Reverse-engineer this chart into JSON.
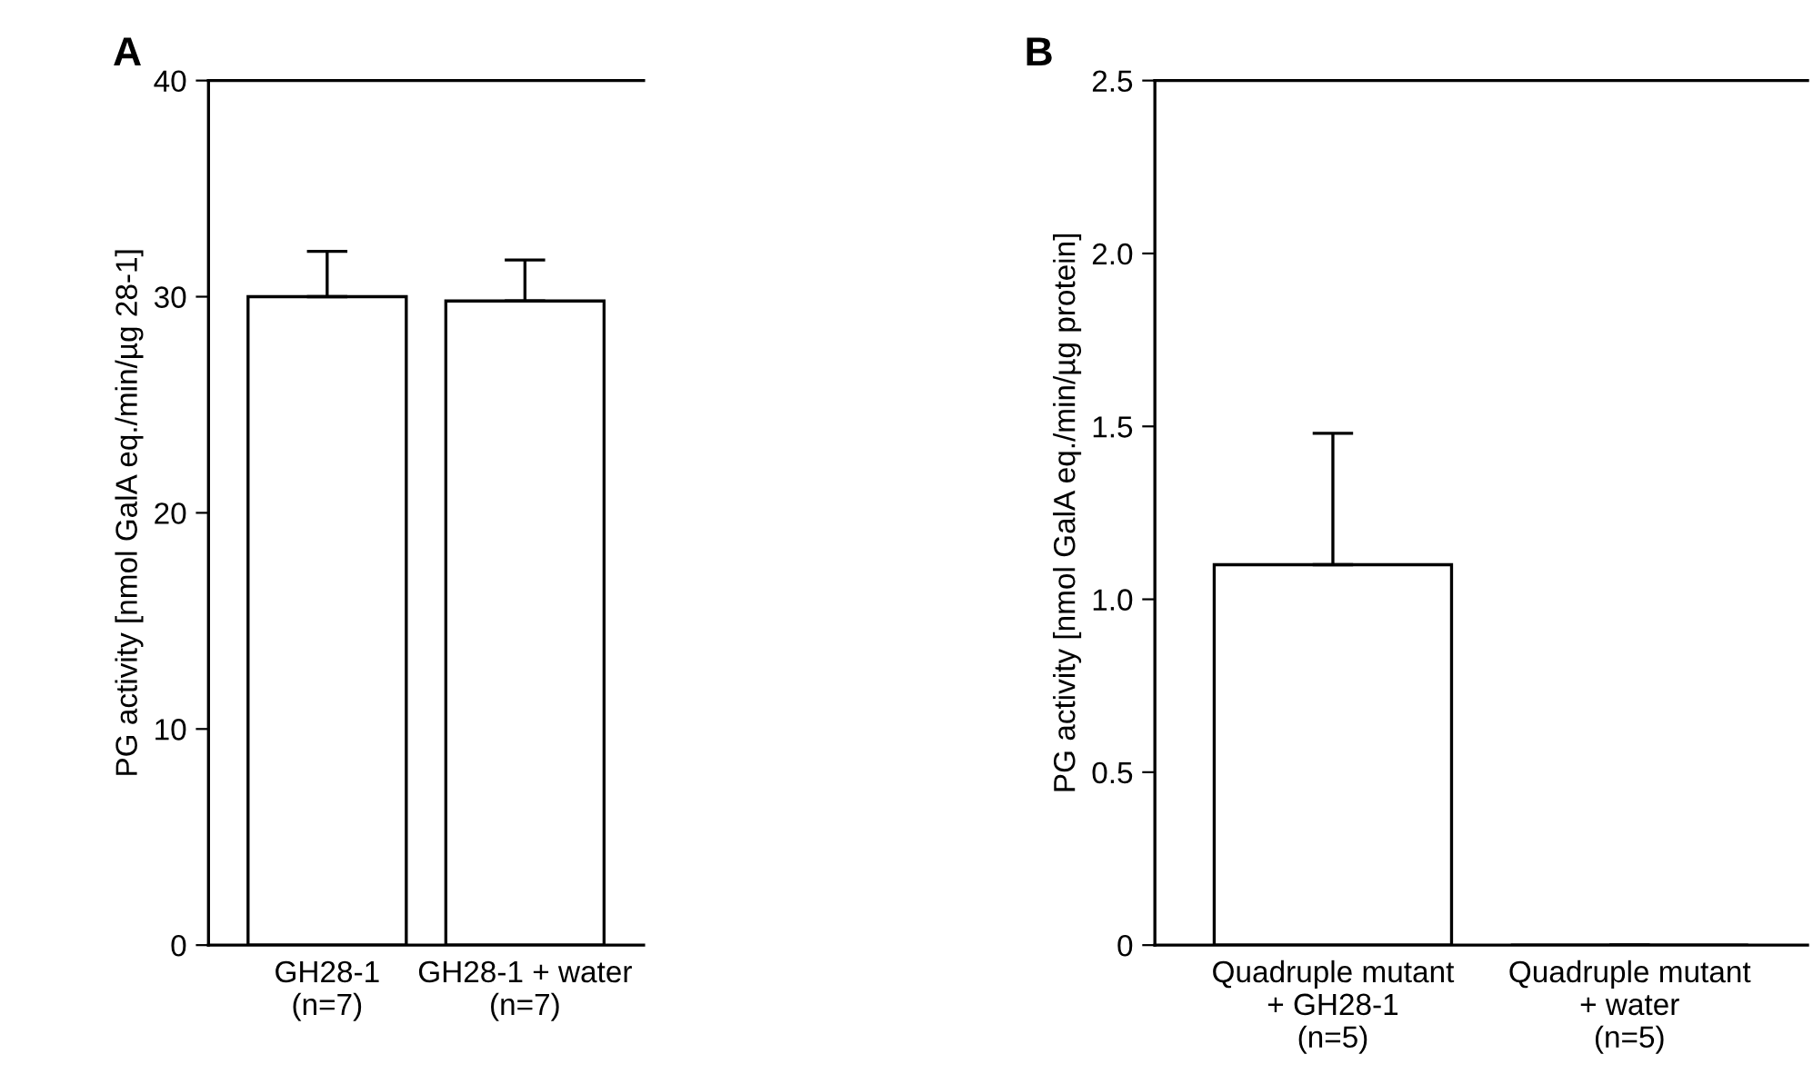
{
  "chart_data": [
    {
      "type": "bar",
      "title": "A",
      "categories": [
        "GH28-1\n(n=7)",
        "GH28-1 + water\n(n=7)"
      ],
      "ylabel": "PG activity [nmol GalA eq./min/µg 28-1]",
      "series": [
        {
          "color": "#ffffff",
          "values": [
            30.0,
            29.8
          ],
          "errors": [
            [
              30.0,
              32.1
            ],
            [
              29.8,
              31.7
            ]
          ]
        }
      ],
      "ylim": [
        0,
        40
      ],
      "yticks": [
        0,
        10,
        20,
        30,
        40
      ],
      "grid": false,
      "legend": false
    },
    {
      "type": "bar",
      "title": "B",
      "categories": [
        "Quadruple mutant\n+ GH28-1\n(n=5)",
        "Quadruple mutant\n+ water\n(n=5)"
      ],
      "ylabel": "PG activity [nmol GalA eq./min/µg protein]",
      "series": [
        {
          "color": "#ffffff",
          "values": [
            1.1,
            0
          ],
          "errors": [
            [
              1.1,
              1.48
            ],
            null
          ]
        }
      ],
      "ylim": [
        0,
        2.5
      ],
      "yticks": [
        0,
        {
          "value": 0.5,
          "label": "0.5"
        },
        {
          "value": 1.0,
          "label": "1.0"
        },
        {
          "value": 1.5,
          "label": "1.5"
        },
        {
          "value": 2.0,
          "label": "2.0"
        },
        {
          "value": 2.5,
          "label": "2.5"
        }
      ],
      "grid": false,
      "legend": false
    }
  ]
}
